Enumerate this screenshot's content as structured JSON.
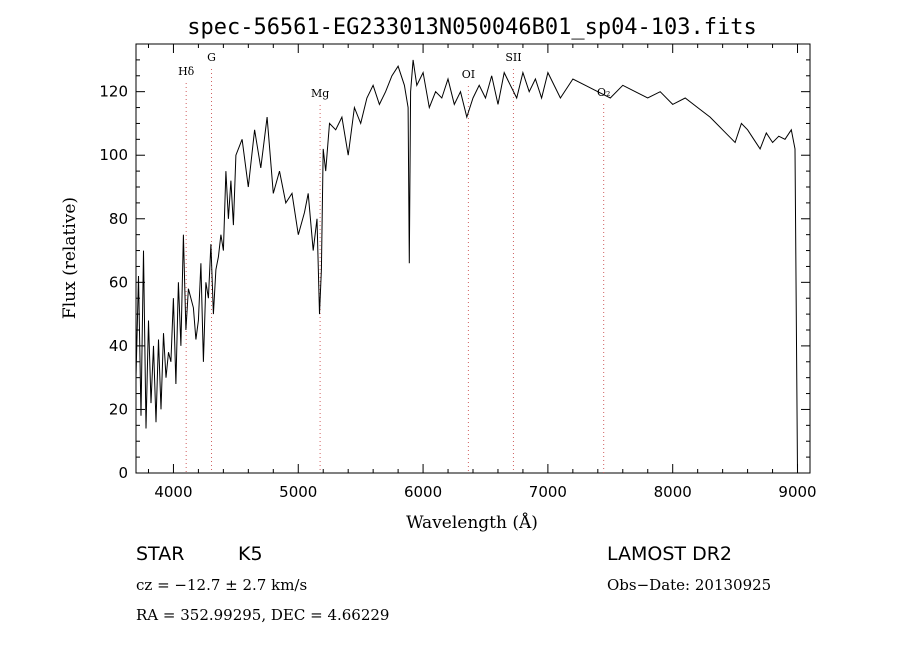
{
  "chart_data": {
    "type": "line",
    "title": "spec-56561-EG233013N050046B01_sp04-103.fits",
    "xlabel": "Wavelength (Å)",
    "ylabel": "Flux (relative)",
    "xlim": [
      3700,
      9100
    ],
    "ylim": [
      0,
      135
    ],
    "xticks": [
      4000,
      5000,
      6000,
      7000,
      8000,
      9000
    ],
    "yticks": [
      0,
      20,
      40,
      60,
      80,
      100,
      120
    ],
    "spectral_lines": [
      {
        "label": "Hδ",
        "wavelength": 4102
      },
      {
        "label": "G",
        "wavelength": 4305
      },
      {
        "label": "Mg",
        "wavelength": 5175
      },
      {
        "label": "OI",
        "wavelength": 6363
      },
      {
        "label": "SII",
        "wavelength": 6724
      },
      {
        "label": "O₂",
        "wavelength": 7447
      }
    ],
    "series": [
      {
        "x": [
          3700,
          3720,
          3740,
          3760,
          3780,
          3800,
          3820,
          3840,
          3860,
          3880,
          3900,
          3920,
          3940,
          3960,
          3980,
          4000,
          4020,
          4040,
          4060,
          4080,
          4100,
          4120,
          4140,
          4160,
          4180,
          4200,
          4220,
          4240,
          4260,
          4280,
          4300,
          4320,
          4340,
          4360,
          4380,
          4400,
          4420,
          4440,
          4460,
          4480,
          4500,
          4550,
          4600,
          4650,
          4700,
          4750,
          4800,
          4850,
          4900,
          4950,
          5000,
          5050,
          5080,
          5120,
          5150,
          5170,
          5185,
          5200,
          5220,
          5250,
          5300,
          5350,
          5400,
          5450,
          5500,
          5550,
          5600,
          5650,
          5700,
          5750,
          5800,
          5850,
          5880,
          5890,
          5900,
          5920,
          5950,
          6000,
          6050,
          6100,
          6150,
          6200,
          6250,
          6300,
          6350,
          6400,
          6450,
          6500,
          6550,
          6600,
          6650,
          6700,
          6750,
          6800,
          6850,
          6900,
          6950,
          7000,
          7100,
          7200,
          7300,
          7400,
          7500,
          7600,
          7700,
          7800,
          7900,
          8000,
          8100,
          8200,
          8300,
          8400,
          8450,
          8500,
          8550,
          8600,
          8650,
          8700,
          8750,
          8800,
          8850,
          8900,
          8950,
          8980,
          9000
        ],
        "y": [
          30,
          62,
          18,
          70,
          14,
          48,
          22,
          40,
          16,
          42,
          20,
          44,
          30,
          38,
          35,
          55,
          28,
          60,
          40,
          75,
          45,
          58,
          55,
          52,
          42,
          48,
          66,
          35,
          60,
          55,
          72,
          50,
          64,
          68,
          75,
          70,
          95,
          80,
          92,
          78,
          100,
          105,
          90,
          108,
          96,
          112,
          88,
          95,
          85,
          88,
          75,
          82,
          88,
          70,
          80,
          50,
          64,
          102,
          95,
          110,
          108,
          112,
          100,
          115,
          110,
          118,
          122,
          116,
          120,
          125,
          128,
          122,
          115,
          66,
          120,
          130,
          122,
          126,
          115,
          120,
          118,
          124,
          116,
          120,
          112,
          118,
          122,
          118,
          125,
          116,
          126,
          122,
          118,
          126,
          120,
          124,
          118,
          126,
          118,
          124,
          122,
          120,
          118,
          122,
          120,
          118,
          120,
          116,
          118,
          115,
          112,
          108,
          106,
          104,
          110,
          108,
          105,
          102,
          107,
          104,
          106,
          105,
          108,
          102,
          0
        ]
      }
    ]
  },
  "info": {
    "object_type": "STAR",
    "subclass": "K5",
    "cz": "cz = −12.7 ± 2.7 km/s",
    "coords": "RA = 352.99295, DEC =   4.66229",
    "survey": "LAMOST DR2",
    "obs_date": "Obs−Date: 20130925"
  }
}
